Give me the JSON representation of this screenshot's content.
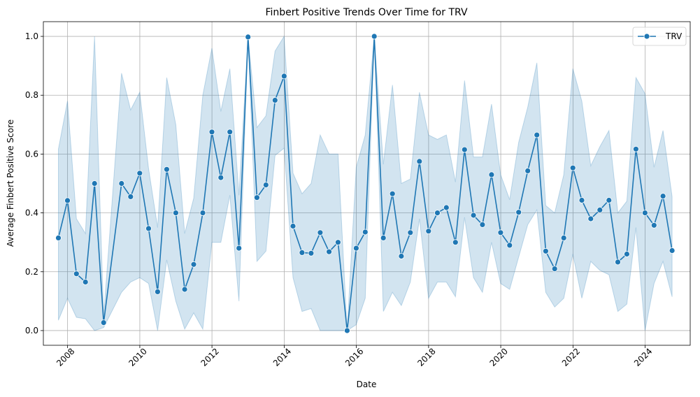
{
  "chart_data": {
    "type": "line",
    "title": "Finbert Positive Trends Over Time for TRV",
    "xlabel": "Date",
    "ylabel": "Average Finbert Positive Score",
    "x_ticks": [
      "2008",
      "2010",
      "2012",
      "2014",
      "2016",
      "2018",
      "2020",
      "2022",
      "2024"
    ],
    "y_ticks": [
      "0.0",
      "0.2",
      "0.4",
      "0.6",
      "0.8",
      "1.0"
    ],
    "xlim": [
      "2007-05-01",
      "2025-04-01"
    ],
    "ylim": [
      -0.05,
      1.05
    ],
    "grid": true,
    "legend_position": "top-right",
    "line_color": "#1f77b4",
    "band_color": "#1f77b4",
    "series": [
      {
        "name": "TRV",
        "x": [
          "2007-09-30",
          "2007-12-31",
          "2008-03-31",
          "2008-06-30",
          "2008-09-30",
          "2008-12-31",
          "2009-06-30",
          "2009-09-30",
          "2009-12-31",
          "2010-03-31",
          "2010-06-30",
          "2010-09-30",
          "2010-12-31",
          "2011-03-31",
          "2011-06-30",
          "2011-09-30",
          "2011-12-31",
          "2012-03-31",
          "2012-06-30",
          "2012-09-30",
          "2012-12-31",
          "2013-03-31",
          "2013-06-30",
          "2013-09-30",
          "2013-12-31",
          "2014-03-31",
          "2014-06-30",
          "2014-09-30",
          "2014-12-31",
          "2015-03-31",
          "2015-06-30",
          "2015-09-30",
          "2015-12-31",
          "2016-03-31",
          "2016-06-30",
          "2016-09-30",
          "2016-12-31",
          "2017-03-31",
          "2017-06-30",
          "2017-09-30",
          "2017-12-31",
          "2018-03-31",
          "2018-06-30",
          "2018-09-30",
          "2018-12-31",
          "2019-03-31",
          "2019-06-30",
          "2019-09-30",
          "2019-12-31",
          "2020-03-31",
          "2020-06-30",
          "2020-09-30",
          "2020-12-31",
          "2021-03-31",
          "2021-06-30",
          "2021-09-30",
          "2021-12-31",
          "2022-03-31",
          "2022-06-30",
          "2022-09-30",
          "2022-12-31",
          "2023-03-31",
          "2023-06-30",
          "2023-09-30",
          "2023-12-31",
          "2024-03-31",
          "2024-06-30",
          "2024-09-30"
        ],
        "values": [
          0.315,
          0.442,
          0.193,
          0.165,
          0.5,
          0.027,
          0.5,
          0.455,
          0.535,
          0.347,
          0.132,
          0.548,
          0.4,
          0.14,
          0.225,
          0.4,
          0.675,
          0.52,
          0.675,
          0.28,
          0.998,
          0.452,
          0.495,
          0.783,
          0.865,
          0.355,
          0.265,
          0.263,
          0.333,
          0.268,
          0.3,
          0.0,
          0.28,
          0.335,
          1.0,
          0.315,
          0.465,
          0.253,
          0.333,
          0.575,
          0.338,
          0.4,
          0.418,
          0.3,
          0.615,
          0.392,
          0.36,
          0.53,
          0.333,
          0.29,
          0.402,
          0.543,
          0.665,
          0.27,
          0.21,
          0.315,
          0.553,
          0.443,
          0.38,
          0.41,
          0.443,
          0.233,
          0.26,
          0.617,
          0.4,
          0.358,
          0.457,
          0.272
        ],
        "ci_upper": [
          0.617,
          0.78,
          0.38,
          0.33,
          1.0,
          0.048,
          0.875,
          0.75,
          0.81,
          0.55,
          0.35,
          0.86,
          0.7,
          0.33,
          0.45,
          0.8,
          0.96,
          0.745,
          0.89,
          0.46,
          1.0,
          0.69,
          0.73,
          0.95,
          1.0,
          0.535,
          0.465,
          0.5,
          0.665,
          0.6,
          0.6,
          0.0,
          0.555,
          0.665,
          1.0,
          0.565,
          0.835,
          0.5,
          0.515,
          0.81,
          0.665,
          0.65,
          0.665,
          0.505,
          0.85,
          0.59,
          0.59,
          0.77,
          0.53,
          0.445,
          0.64,
          0.76,
          0.91,
          0.425,
          0.4,
          0.53,
          0.89,
          0.78,
          0.56,
          0.625,
          0.68,
          0.4,
          0.44,
          0.86,
          0.805,
          0.555,
          0.68,
          0.455
        ],
        "ci_lower": [
          0.035,
          0.11,
          0.045,
          0.04,
          0.0,
          0.01,
          0.13,
          0.165,
          0.18,
          0.16,
          0.0,
          0.24,
          0.1,
          0.005,
          0.06,
          0.005,
          0.3,
          0.3,
          0.46,
          0.1,
          0.995,
          0.235,
          0.27,
          0.595,
          0.62,
          0.18,
          0.065,
          0.075,
          0.0,
          0.0,
          0.0,
          0.0,
          0.02,
          0.11,
          1.0,
          0.065,
          0.13,
          0.085,
          0.165,
          0.38,
          0.11,
          0.165,
          0.165,
          0.115,
          0.385,
          0.18,
          0.13,
          0.3,
          0.16,
          0.14,
          0.25,
          0.36,
          0.41,
          0.13,
          0.08,
          0.11,
          0.26,
          0.11,
          0.235,
          0.205,
          0.19,
          0.065,
          0.09,
          0.35,
          0.0,
          0.16,
          0.235,
          0.115
        ]
      }
    ]
  }
}
